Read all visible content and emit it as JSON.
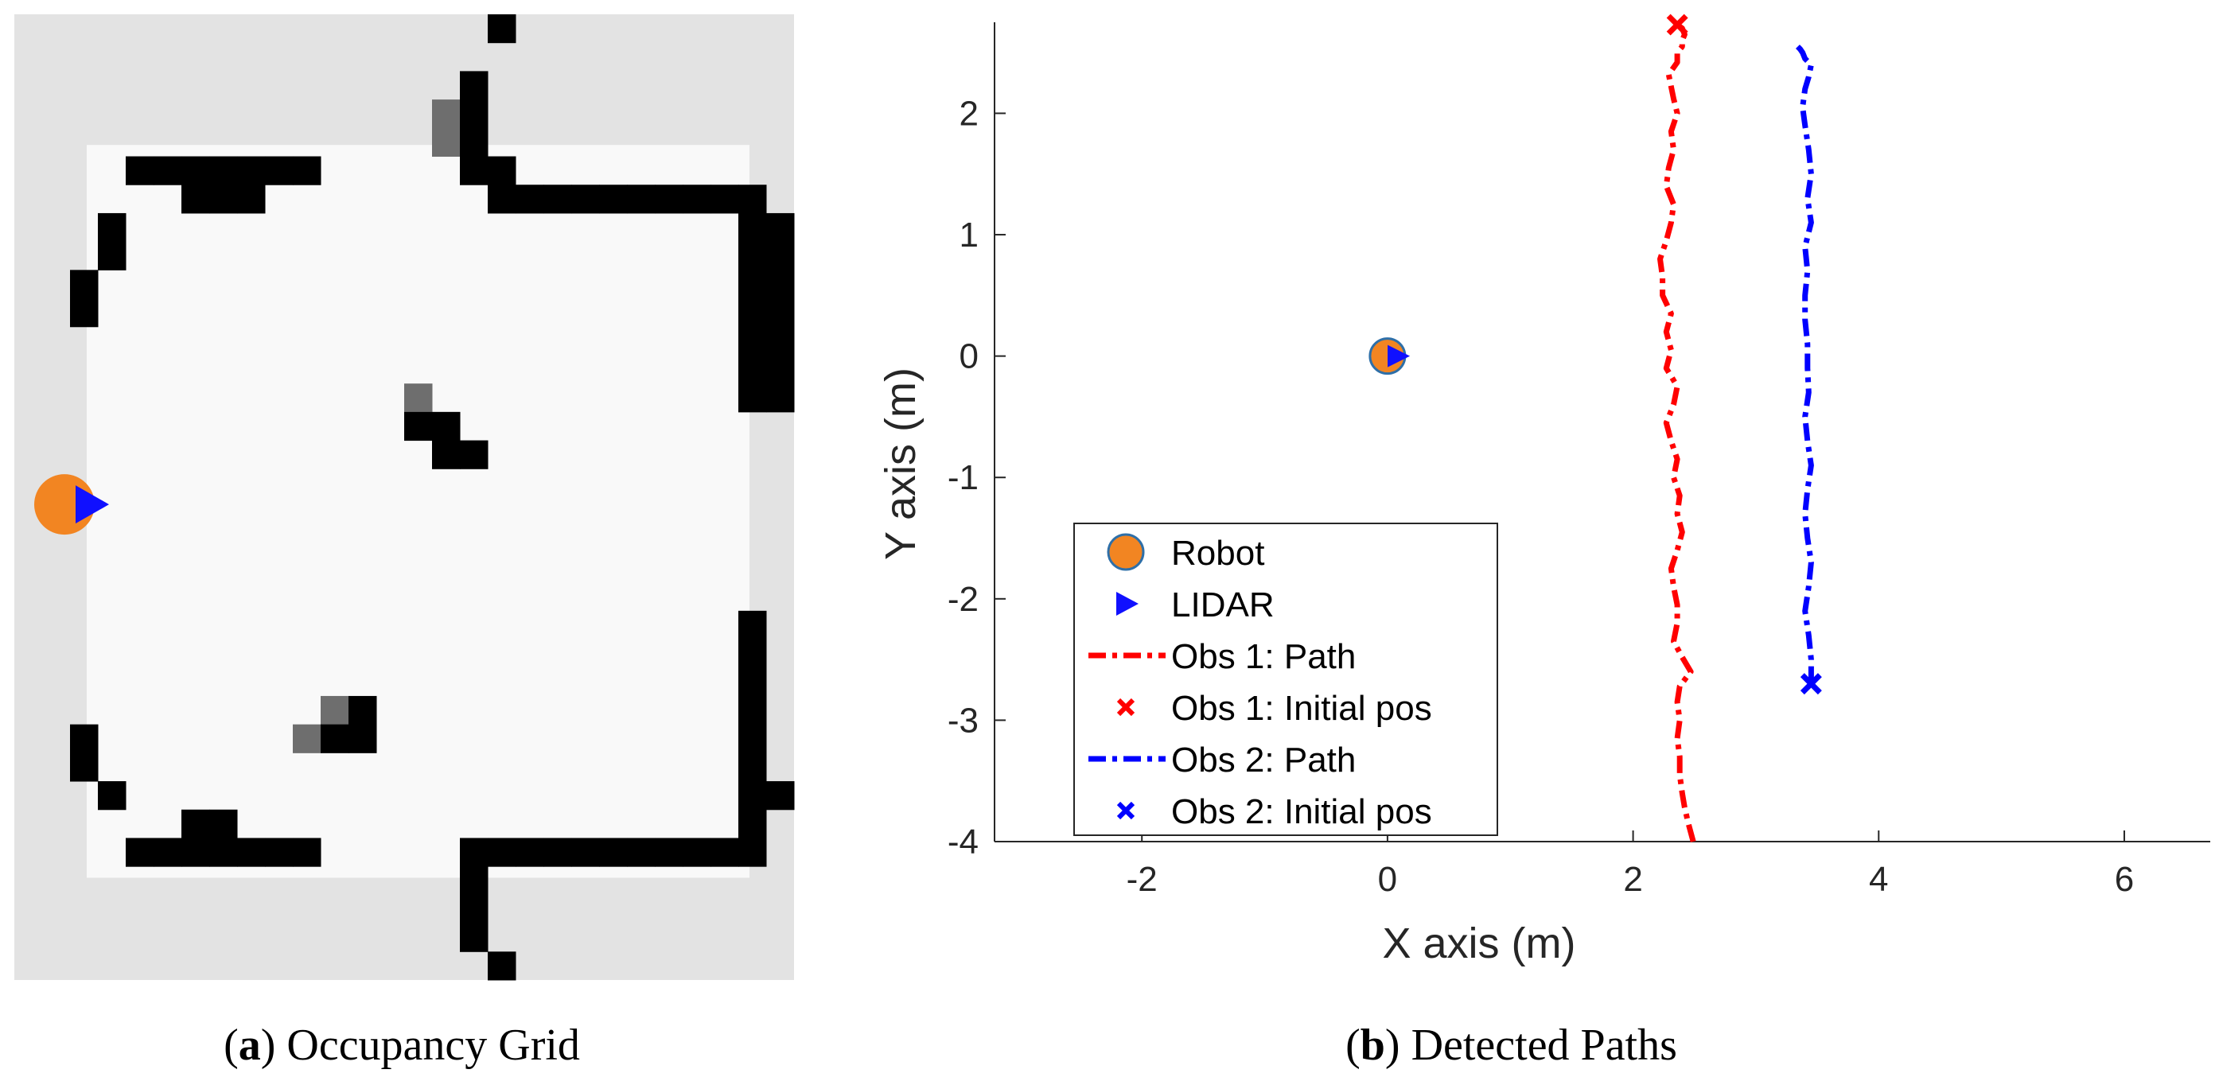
{
  "colors": {
    "robot_fill": "#F28522",
    "robot_edge": "#2E6FA8",
    "lidar": "#1010FF",
    "obs1": "#FF0000",
    "obs2": "#0000FF",
    "grid_unknown": "#E3E3E3",
    "grid_free": "#F9F9F9",
    "grid_occupied": "#000000"
  },
  "captions": {
    "a": {
      "label": "a",
      "text": "Occupancy Grid"
    },
    "b": {
      "label": "b",
      "text": "Detected Paths"
    }
  },
  "occupancy_grid": {
    "cols": 28,
    "rows": 34,
    "robot_cell": [
      2.2,
      17.2
    ],
    "heading_deg": 0,
    "free_rect_cells": [
      2.6,
      4.6,
      26.4,
      30.4
    ],
    "occupied_cells": [
      [
        17,
        0
      ],
      [
        16,
        2
      ],
      [
        16,
        3
      ],
      [
        16,
        4
      ],
      [
        16,
        5
      ],
      [
        17,
        5
      ],
      [
        4,
        5
      ],
      [
        5,
        5
      ],
      [
        6,
        5
      ],
      [
        7,
        5
      ],
      [
        8,
        5
      ],
      [
        9,
        5
      ],
      [
        10,
        5
      ],
      [
        6,
        6
      ],
      [
        7,
        6
      ],
      [
        8,
        6
      ],
      [
        17,
        6
      ],
      [
        18,
        6
      ],
      [
        19,
        6
      ],
      [
        20,
        6
      ],
      [
        21,
        6
      ],
      [
        22,
        6
      ],
      [
        23,
        6
      ],
      [
        24,
        6
      ],
      [
        25,
        6
      ],
      [
        26,
        6
      ],
      [
        26,
        7
      ],
      [
        26,
        8
      ],
      [
        3,
        7
      ],
      [
        3,
        8
      ],
      [
        27,
        7
      ],
      [
        27,
        8
      ],
      [
        27,
        9
      ],
      [
        27,
        10
      ],
      [
        27,
        11
      ],
      [
        27,
        12
      ],
      [
        27,
        13
      ],
      [
        2,
        9
      ],
      [
        2,
        10
      ],
      [
        26,
        9
      ],
      [
        26,
        10
      ],
      [
        26,
        11
      ],
      [
        26,
        12
      ],
      [
        26,
        13
      ],
      [
        14,
        14
      ],
      [
        15,
        14
      ],
      [
        15,
        15
      ],
      [
        16,
        15
      ],
      [
        26,
        21
      ],
      [
        26,
        22
      ],
      [
        26,
        23
      ],
      [
        26,
        24
      ],
      [
        26,
        25
      ],
      [
        26,
        26
      ],
      [
        26,
        27
      ],
      [
        27,
        27
      ],
      [
        2,
        25
      ],
      [
        2,
        26
      ],
      [
        3,
        27
      ],
      [
        11,
        25
      ],
      [
        12,
        25
      ],
      [
        12,
        24
      ],
      [
        4,
        29
      ],
      [
        5,
        29
      ],
      [
        6,
        29
      ],
      [
        7,
        29
      ],
      [
        8,
        29
      ],
      [
        9,
        29
      ],
      [
        10,
        29
      ],
      [
        6,
        28
      ],
      [
        7,
        28
      ],
      [
        16,
        29
      ],
      [
        17,
        29
      ],
      [
        18,
        29
      ],
      [
        19,
        29
      ],
      [
        20,
        29
      ],
      [
        21,
        29
      ],
      [
        22,
        29
      ],
      [
        23,
        29
      ],
      [
        24,
        29
      ],
      [
        25,
        29
      ],
      [
        26,
        29
      ],
      [
        26,
        28
      ],
      [
        16,
        30
      ],
      [
        16,
        31
      ],
      [
        16,
        32
      ],
      [
        17,
        33
      ]
    ],
    "gray_cells": [
      [
        15,
        3
      ],
      [
        15,
        4
      ],
      [
        14,
        13
      ],
      [
        15,
        14
      ],
      [
        11,
        24
      ],
      [
        10,
        25
      ]
    ]
  },
  "chart_data": {
    "type": "line",
    "title": "",
    "xlabel": "X axis (m)",
    "ylabel": "Y axis (m)",
    "xlim": [
      -3.2,
      6.7
    ],
    "ylim": [
      -4,
      2.75
    ],
    "xticks": [
      -2,
      0,
      2,
      4,
      6
    ],
    "yticks": [
      2,
      1,
      0,
      -1,
      -2,
      -3,
      -4
    ],
    "xtick_labels": [
      "-2",
      "0",
      "2",
      "4",
      "6"
    ],
    "ytick_labels": [
      "2",
      "1",
      "0",
      "-1",
      "-2",
      "-3",
      "-4"
    ],
    "grid": false,
    "legend_position": "bottom-left",
    "robot": {
      "name": "Robot",
      "x": 0,
      "y": 0
    },
    "lidar": {
      "name": "LIDAR",
      "x": 0.04,
      "y": 0
    },
    "series": [
      {
        "name": "Obs 1: Path",
        "color": "#FF0000",
        "x": [
          2.49,
          2.45,
          2.42,
          2.4,
          2.38,
          2.38,
          2.36,
          2.38,
          2.36,
          2.38,
          2.47,
          2.4,
          2.33,
          2.36,
          2.36,
          2.33,
          2.31,
          2.36,
          2.4,
          2.36,
          2.38,
          2.33,
          2.36,
          2.31,
          2.27,
          2.33,
          2.36,
          2.27,
          2.31,
          2.27,
          2.31,
          2.24,
          2.24,
          2.22,
          2.27,
          2.31,
          2.33,
          2.27,
          2.29,
          2.33,
          2.31,
          2.36,
          2.33,
          2.31,
          2.29,
          2.36,
          2.36,
          2.4,
          2.4,
          2.42,
          2.4,
          2.36
        ],
        "y": [
          -4.0,
          -3.85,
          -3.72,
          -3.6,
          -3.45,
          -3.3,
          -3.15,
          -3.0,
          -2.85,
          -2.72,
          -2.6,
          -2.48,
          -2.35,
          -2.2,
          -2.05,
          -1.9,
          -1.75,
          -1.6,
          -1.45,
          -1.3,
          -1.15,
          -1.0,
          -0.85,
          -0.7,
          -0.55,
          -0.4,
          -0.25,
          -0.1,
          0.05,
          0.2,
          0.35,
          0.5,
          0.65,
          0.8,
          0.95,
          1.1,
          1.25,
          1.4,
          1.55,
          1.7,
          1.85,
          2.0,
          2.12,
          2.22,
          2.32,
          2.42,
          2.5,
          2.55,
          2.6,
          2.65,
          2.7,
          2.73
        ]
      },
      {
        "name": "Obs 2: Path",
        "color": "#0000FF",
        "x": [
          3.45,
          3.45,
          3.43,
          3.4,
          3.43,
          3.45,
          3.42,
          3.4,
          3.42,
          3.45,
          3.42,
          3.4,
          3.43,
          3.42,
          3.42,
          3.4,
          3.4,
          3.42,
          3.4,
          3.45,
          3.42,
          3.45,
          3.43,
          3.4,
          3.38,
          3.4,
          3.43,
          3.45,
          3.4,
          3.38,
          3.36,
          3.33
        ],
        "y": [
          -2.7,
          -2.5,
          -2.3,
          -2.1,
          -1.9,
          -1.7,
          -1.5,
          -1.3,
          -1.1,
          -0.9,
          -0.7,
          -0.5,
          -0.3,
          -0.1,
          0.1,
          0.3,
          0.5,
          0.7,
          0.9,
          1.1,
          1.3,
          1.5,
          1.7,
          1.9,
          2.05,
          2.2,
          2.3,
          2.4,
          2.45,
          2.5,
          2.53,
          2.56
        ]
      }
    ],
    "initial_positions": [
      {
        "name": "Obs 1: Initial pos",
        "color": "#FF0000",
        "x": 2.36,
        "y": 2.73
      },
      {
        "name": "Obs 2: Initial pos",
        "color": "#0000FF",
        "x": 3.45,
        "y": -2.7
      }
    ],
    "legend": [
      {
        "label": "Robot",
        "kind": "robot"
      },
      {
        "label": "LIDAR",
        "kind": "lidar"
      },
      {
        "label": "Obs 1: Path",
        "kind": "line",
        "color": "#FF0000"
      },
      {
        "label": "Obs 1: Initial pos",
        "kind": "cross",
        "color": "#FF0000"
      },
      {
        "label": "Obs 2: Path",
        "kind": "line",
        "color": "#0000FF"
      },
      {
        "label": "Obs 2: Initial pos",
        "kind": "cross",
        "color": "#0000FF"
      }
    ]
  }
}
